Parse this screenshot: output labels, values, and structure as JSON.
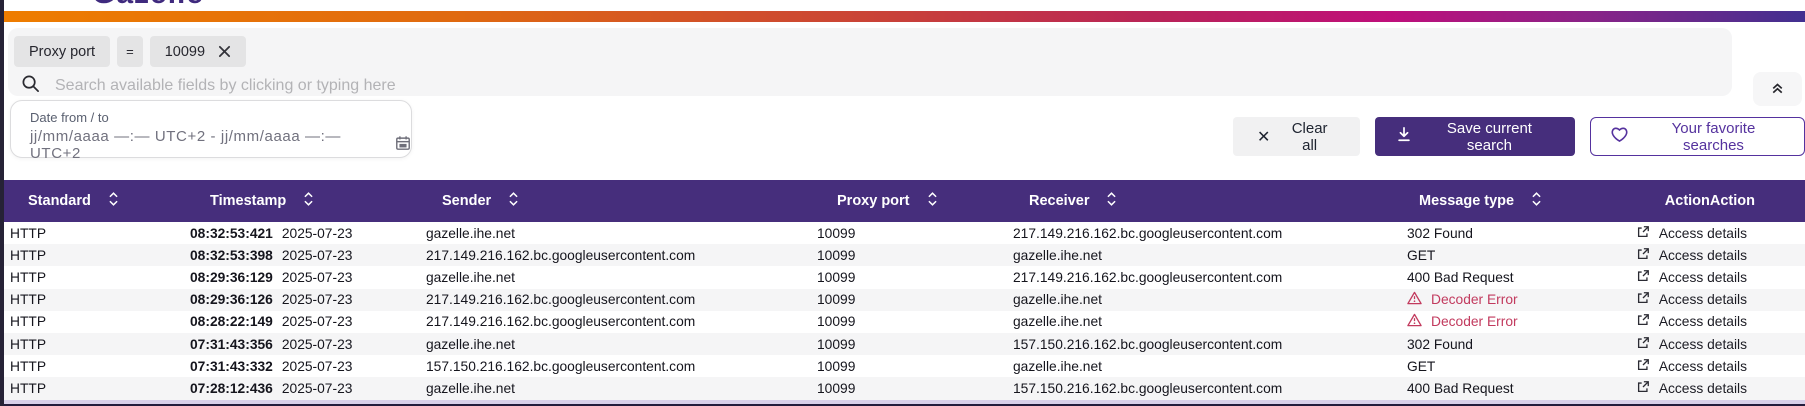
{
  "brand": {
    "logo_text": "Gazelle"
  },
  "filter_panel": {
    "chips": [
      {
        "label": "Proxy port"
      },
      {
        "label": "="
      },
      {
        "label": "10099"
      }
    ],
    "search": {
      "placeholder": "Search available fields by clicking or typing here"
    }
  },
  "date_filter": {
    "label": "Date from / to",
    "value": "jj/mm/aaaa —:— UTC+2 - jj/mm/aaaa —:— UTC+2"
  },
  "toolbar": {
    "clear_all_label": "Clear all",
    "save_search_label": "Save current search",
    "favorites_label": "Your favorite searches"
  },
  "collapse_button": {
    "icon": "double-chevron-up-icon"
  },
  "table": {
    "action_label": "Access details",
    "columns": [
      {
        "key": "standard",
        "label": "Standard",
        "sortable": true
      },
      {
        "key": "timestamp",
        "label": "Timestamp",
        "sortable": true
      },
      {
        "key": "sender",
        "label": "Sender",
        "sortable": true
      },
      {
        "key": "proxy_port",
        "label": "Proxy port",
        "sortable": true
      },
      {
        "key": "receiver",
        "label": "Receiver",
        "sortable": true
      },
      {
        "key": "message_type",
        "label": "Message type",
        "sortable": true
      },
      {
        "key": "action",
        "label": "ActionAction",
        "sortable": false
      }
    ],
    "rows": [
      {
        "standard": "HTTP",
        "time": "08:32:53:421",
        "date": "2025-07-23",
        "sender": "gazelle.ihe.net",
        "proxy_port": "10099",
        "receiver": "217.149.216.162.bc.googleusercontent.com",
        "message_type": "302 Found",
        "message_error": false
      },
      {
        "standard": "HTTP",
        "time": "08:32:53:398",
        "date": "2025-07-23",
        "sender": "217.149.216.162.bc.googleusercontent.com",
        "proxy_port": "10099",
        "receiver": "gazelle.ihe.net",
        "message_type": "GET",
        "message_error": false
      },
      {
        "standard": "HTTP",
        "time": "08:29:36:129",
        "date": "2025-07-23",
        "sender": "gazelle.ihe.net",
        "proxy_port": "10099",
        "receiver": "217.149.216.162.bc.googleusercontent.com",
        "message_type": "400 Bad Request",
        "message_error": false
      },
      {
        "standard": "HTTP",
        "time": "08:29:36:126",
        "date": "2025-07-23",
        "sender": "217.149.216.162.bc.googleusercontent.com",
        "proxy_port": "10099",
        "receiver": "gazelle.ihe.net",
        "message_type": "Decoder Error",
        "message_error": true
      },
      {
        "standard": "HTTP",
        "time": "08:28:22:149",
        "date": "2025-07-23",
        "sender": "217.149.216.162.bc.googleusercontent.com",
        "proxy_port": "10099",
        "receiver": "gazelle.ihe.net",
        "message_type": "Decoder Error",
        "message_error": true
      },
      {
        "standard": "HTTP",
        "time": "07:31:43:356",
        "date": "2025-07-23",
        "sender": "gazelle.ihe.net",
        "proxy_port": "10099",
        "receiver": "157.150.216.162.bc.googleusercontent.com",
        "message_type": "302 Found",
        "message_error": false
      },
      {
        "standard": "HTTP",
        "time": "07:31:43:332",
        "date": "2025-07-23",
        "sender": "157.150.216.162.bc.googleusercontent.com",
        "proxy_port": "10099",
        "receiver": "gazelle.ihe.net",
        "message_type": "GET",
        "message_error": false
      },
      {
        "standard": "HTTP",
        "time": "07:28:12:436",
        "date": "2025-07-23",
        "sender": "gazelle.ihe.net",
        "proxy_port": "10099",
        "receiver": "157.150.216.162.bc.googleusercontent.com",
        "message_type": "400 Bad Request",
        "message_error": false
      }
    ]
  },
  "colors": {
    "header_purple": "#462e7c",
    "accent_purple": "#55329e",
    "error_red": "#c23a5e",
    "panel_gray": "#f5f5f6",
    "chip_gray": "#e4e4e5",
    "lavender_strip": "#d9d0e9",
    "bottom_dark": "#241d3c",
    "gradient": [
      "#ee7d00",
      "#d9531e",
      "#c8403a",
      "#b92458",
      "#bf0f7b",
      "#8a2388",
      "#413090"
    ]
  }
}
